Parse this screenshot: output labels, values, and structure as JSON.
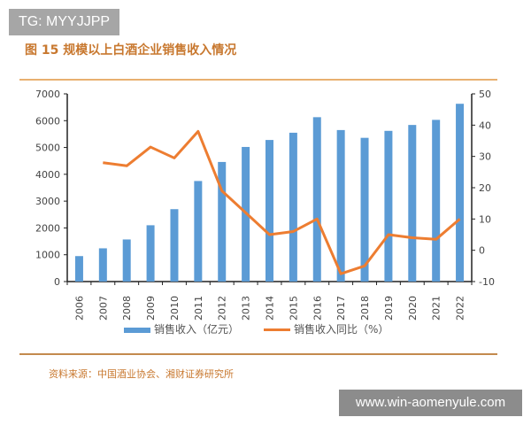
{
  "watermark_top": "TG: MYYJJPP",
  "watermark_bottom": "www.win-aomenyule.com",
  "figure_title": "图 15 规模以上白酒企业销售收入情况",
  "source": "资料来源：中国酒业协会、湘财证券研究所",
  "chart_data": {
    "type": "bar+line",
    "categories": [
      "2006",
      "2007",
      "2008",
      "2009",
      "2010",
      "2011",
      "2012",
      "2013",
      "2014",
      "2015",
      "2016",
      "2017",
      "2018",
      "2019",
      "2020",
      "2021",
      "2022"
    ],
    "series": [
      {
        "name": "销售收入（亿元）",
        "type": "bar",
        "axis": "left",
        "color": "#5b9bd5",
        "values": [
          950,
          1240,
          1570,
          2100,
          2700,
          3750,
          4460,
          5020,
          5280,
          5550,
          6130,
          5650,
          5360,
          5620,
          5840,
          6030,
          6630
        ]
      },
      {
        "name": "销售收入同比（%）",
        "type": "line",
        "axis": "right",
        "color": "#ed7d31",
        "values": [
          null,
          28,
          27,
          33,
          29.5,
          38,
          19,
          12,
          5,
          6,
          10,
          -7.5,
          -5,
          5,
          4,
          3.5,
          10
        ]
      }
    ],
    "left_axis": {
      "ylim": [
        0,
        7000
      ],
      "ticks": [
        "0",
        "1000",
        "2000",
        "3000",
        "4000",
        "5000",
        "6000",
        "7000"
      ]
    },
    "right_axis": {
      "ylim": [
        -10,
        50
      ],
      "ticks": [
        "-10",
        "0",
        "10",
        "20",
        "30",
        "40",
        "50"
      ]
    },
    "grid": false,
    "legend": "bottom"
  }
}
